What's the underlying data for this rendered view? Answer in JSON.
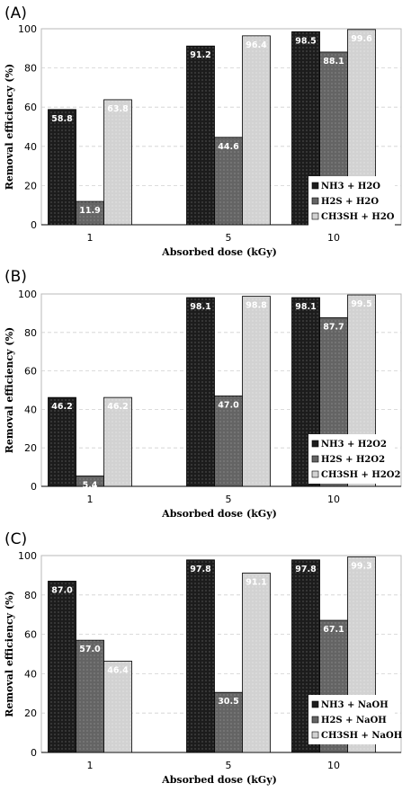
{
  "chart_data": [
    {
      "panel_label": "(A)",
      "type": "bar",
      "categories": [
        "1",
        "5",
        "10"
      ],
      "series": [
        {
          "name": "NH3 + H2O",
          "values": [
            58.8,
            91.2,
            98.5
          ],
          "color": "#1c1c1c"
        },
        {
          "name": "H2S + H2O",
          "values": [
            11.9,
            44.6,
            88.1
          ],
          "color": "#646464"
        },
        {
          "name": "CH3SH + H2O",
          "values": [
            63.8,
            96.4,
            99.6
          ],
          "color": "#d2d2d2"
        }
      ],
      "xlabel": "Absorbed dose (kGy)",
      "ylabel": "Removal efficiency (%)",
      "ylim": [
        0,
        100
      ],
      "yticks": [
        "0",
        "20",
        "40",
        "60",
        "80",
        "100"
      ],
      "data_labels": [
        [
          "58.8",
          "91.2",
          "98.5"
        ],
        [
          "11.9",
          "44.6",
          "88.1"
        ],
        [
          "63.8",
          "96.4",
          "99.6"
        ]
      ],
      "grid": true,
      "legend": "bottom-right"
    },
    {
      "panel_label": "(B)",
      "type": "bar",
      "categories": [
        "1",
        "5",
        "10"
      ],
      "series": [
        {
          "name": "NH3 + H2O2",
          "values": [
            46.2,
            98.1,
            98.1
          ],
          "color": "#1c1c1c"
        },
        {
          "name": "H2S + H2O2",
          "values": [
            5.4,
            47.0,
            87.7
          ],
          "color": "#646464"
        },
        {
          "name": "CH3SH + H2O2",
          "values": [
            46.2,
            98.8,
            99.5
          ],
          "color": "#d2d2d2"
        }
      ],
      "xlabel": "Absorbed dose (kGy)",
      "ylabel": "Removal efficiency (%)",
      "ylim": [
        0,
        100
      ],
      "yticks": [
        "0",
        "20",
        "40",
        "60",
        "80",
        "100"
      ],
      "data_labels": [
        [
          "46.2",
          "98.1",
          "98.1"
        ],
        [
          "5.4",
          "47.0",
          "87.7"
        ],
        [
          "46.2",
          "98.8",
          "99.5"
        ]
      ],
      "grid": true,
      "legend": "bottom-right"
    },
    {
      "panel_label": "(C)",
      "type": "bar",
      "categories": [
        "1",
        "5",
        "10"
      ],
      "series": [
        {
          "name": "NH3 + NaOH",
          "values": [
            87.0,
            97.8,
            97.8
          ],
          "color": "#1c1c1c"
        },
        {
          "name": "H2S + NaOH",
          "values": [
            57.0,
            30.5,
            67.1
          ],
          "color": "#646464"
        },
        {
          "name": "CH3SH + NaOH",
          "values": [
            46.4,
            91.1,
            99.3
          ],
          "color": "#d2d2d2"
        }
      ],
      "xlabel": "Absorbed dose (kGy)",
      "ylabel": "Removal efficiency (%)",
      "ylim": [
        0,
        100
      ],
      "yticks": [
        "0",
        "20",
        "40",
        "60",
        "80",
        "100"
      ],
      "data_labels": [
        [
          "87.0",
          "97.8",
          "97.8"
        ],
        [
          "57.0",
          "30.5",
          "67.1"
        ],
        [
          "46.4",
          "91.1",
          "99.3"
        ]
      ],
      "grid": true,
      "legend": "bottom-right"
    }
  ]
}
